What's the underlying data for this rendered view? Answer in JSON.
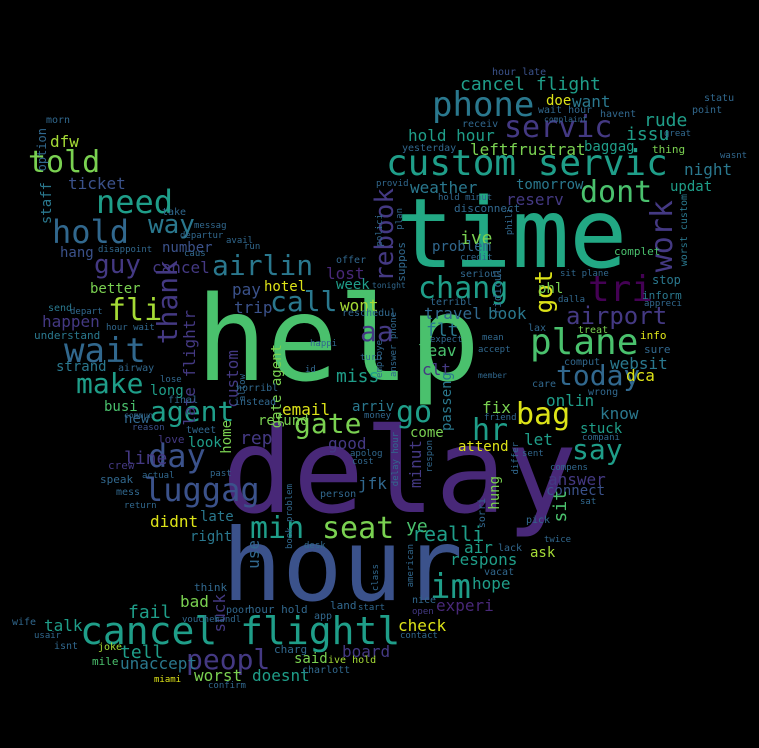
{
  "palette": {
    "yellow": "#dde318",
    "lime": "#a5db36",
    "green": "#7ad151",
    "seagreen": "#4ac16d",
    "teal": "#22a884",
    "tealblue": "#1f9e89",
    "cyan": "#2a788e",
    "slate": "#31688e",
    "blue": "#3b528b",
    "indigo": "#443983",
    "purple": "#482878",
    "deep": "#440154"
  },
  "words": [
    {
      "text": "help",
      "color": "seagreen"
    },
    {
      "text": "delay",
      "color": "purple"
    },
    {
      "text": "hour",
      "color": "blue"
    },
    {
      "text": "time",
      "color": "teal"
    },
    {
      "text": "cancel flightl",
      "color": "tealblue"
    },
    {
      "text": "custom servic",
      "color": "tealblue"
    },
    {
      "text": "phone",
      "color": "cyan"
    },
    {
      "text": "servic",
      "color": "indigo"
    },
    {
      "text": "plane",
      "color": "seagreen"
    },
    {
      "text": "wait",
      "color": "slate"
    },
    {
      "text": "need",
      "color": "tealblue"
    },
    {
      "text": "hold",
      "color": "slate"
    },
    {
      "text": "told",
      "color": "green"
    },
    {
      "text": "thank",
      "color": "indigo"
    },
    {
      "text": "agent",
      "color": "tealblue"
    },
    {
      "text": "luggag",
      "color": "blue"
    },
    {
      "text": "day",
      "color": "blue"
    },
    {
      "text": "make",
      "color": "tealblue"
    },
    {
      "text": "airlin",
      "color": "cyan"
    },
    {
      "text": "guy",
      "color": "indigo"
    },
    {
      "text": "fli",
      "color": "lime"
    },
    {
      "text": "way",
      "color": "cyan"
    },
    {
      "text": "call",
      "color": "cyan"
    },
    {
      "text": "gate",
      "color": "green"
    },
    {
      "text": "seat",
      "color": "green"
    },
    {
      "text": "min",
      "color": "tealblue"
    },
    {
      "text": "im",
      "color": "tealblue"
    },
    {
      "text": "bag",
      "color": "yellow"
    },
    {
      "text": "say",
      "color": "tealblue"
    },
    {
      "text": "today",
      "color": "slate"
    },
    {
      "text": "airport",
      "color": "indigo"
    },
    {
      "text": "tri",
      "color": "deep"
    },
    {
      "text": "work",
      "color": "indigo"
    },
    {
      "text": "dont",
      "color": "seagreen"
    },
    {
      "text": "chang",
      "color": "tealblue"
    },
    {
      "text": "rebook",
      "color": "indigo"
    },
    {
      "text": "hr",
      "color": "tealblue"
    },
    {
      "text": "go",
      "color": "tealblue"
    },
    {
      "text": "aa",
      "color": "indigo"
    },
    {
      "text": "got",
      "color": "yellow"
    },
    {
      "text": "ive",
      "color": "green"
    },
    {
      "text": "peopl",
      "color": "indigo"
    },
    {
      "text": "cancel flight",
      "color": "tealblue"
    },
    {
      "text": "hold hour",
      "color": "tealblue"
    },
    {
      "text": "leftfrustrat",
      "color": "green"
    },
    {
      "text": "weather",
      "color": "cyan"
    },
    {
      "text": "tomorrow",
      "color": "cyan"
    },
    {
      "text": "reserv",
      "color": "indigo"
    },
    {
      "text": "issu",
      "color": "tealblue"
    },
    {
      "text": "rude",
      "color": "tealblue"
    },
    {
      "text": "night",
      "color": "cyan"
    },
    {
      "text": "updat",
      "color": "tealblue"
    },
    {
      "text": "baggag",
      "color": "tealblue"
    },
    {
      "text": "want",
      "color": "cyan"
    },
    {
      "text": "doe",
      "color": "yellow"
    },
    {
      "text": "dfw",
      "color": "lime"
    },
    {
      "text": "ticket",
      "color": "blue"
    },
    {
      "text": "hang",
      "color": "blue"
    },
    {
      "text": "number",
      "color": "blue"
    },
    {
      "text": "cancel",
      "color": "indigo"
    },
    {
      "text": "lost",
      "color": "purple"
    },
    {
      "text": "pay",
      "color": "blue"
    },
    {
      "text": "trip",
      "color": "blue"
    },
    {
      "text": "wont",
      "color": "lime"
    },
    {
      "text": "week",
      "color": "tealblue"
    },
    {
      "text": "happen",
      "color": "indigo"
    },
    {
      "text": "better",
      "color": "green"
    },
    {
      "text": "busi",
      "color": "seagreen"
    },
    {
      "text": "long",
      "color": "tealblue"
    },
    {
      "text": "new",
      "color": "slate"
    },
    {
      "text": "custom",
      "color": "indigo"
    },
    {
      "text": "late flightr",
      "color": "indigo"
    },
    {
      "text": "gate agent",
      "color": "green"
    },
    {
      "text": "email",
      "color": "yellow"
    },
    {
      "text": "refund",
      "color": "green"
    },
    {
      "text": "miss",
      "color": "tealblue"
    },
    {
      "text": "arriv",
      "color": "cyan"
    },
    {
      "text": "flt",
      "color": "cyan"
    },
    {
      "text": "leav",
      "color": "seagreen"
    },
    {
      "text": "travel",
      "color": "slate"
    },
    {
      "text": "book",
      "color": "cyan"
    },
    {
      "text": "problem",
      "color": "slate"
    },
    {
      "text": "clt",
      "color": "indigo"
    },
    {
      "text": "onlin",
      "color": "tealblue"
    },
    {
      "text": "know",
      "color": "cyan"
    },
    {
      "text": "dca",
      "color": "yellow"
    },
    {
      "text": "stuck",
      "color": "tealblue"
    },
    {
      "text": "websit",
      "color": "cyan"
    },
    {
      "text": "fix",
      "color": "green"
    },
    {
      "text": "let",
      "color": "tealblue"
    },
    {
      "text": "attend",
      "color": "yellow"
    },
    {
      "text": "answer",
      "color": "indigo"
    },
    {
      "text": "connect",
      "color": "blue"
    },
    {
      "text": "sit",
      "color": "seagreen"
    },
    {
      "text": "look",
      "color": "tealblue"
    },
    {
      "text": "rep",
      "color": "indigo"
    },
    {
      "text": "home",
      "color": "green"
    },
    {
      "text": "line",
      "color": "indigo"
    },
    {
      "text": "tell",
      "color": "tealblue"
    },
    {
      "text": "good",
      "color": "indigo"
    },
    {
      "text": "come",
      "color": "green"
    },
    {
      "text": "minut",
      "color": "indigo"
    },
    {
      "text": "passeng",
      "color": "cyan"
    },
    {
      "text": "jfk",
      "color": "slate"
    },
    {
      "text": "ye",
      "color": "seagreen"
    },
    {
      "text": "realli",
      "color": "tealblue"
    },
    {
      "text": "hung",
      "color": "green"
    },
    {
      "text": "respons",
      "color": "tealblue"
    },
    {
      "text": "air",
      "color": "tealblue"
    },
    {
      "text": "ask",
      "color": "lime"
    },
    {
      "text": "hope",
      "color": "tealblue"
    },
    {
      "text": "experi",
      "color": "purple"
    },
    {
      "text": "didnt",
      "color": "yellow"
    },
    {
      "text": "late",
      "color": "cyan"
    },
    {
      "text": "right",
      "color": "cyan"
    },
    {
      "text": "use",
      "color": "slate"
    },
    {
      "text": "fail",
      "color": "tealblue"
    },
    {
      "text": "talk",
      "color": "tealblue"
    },
    {
      "text": "bad",
      "color": "green"
    },
    {
      "text": "suck",
      "color": "indigo"
    },
    {
      "text": "unaccept",
      "color": "cyan"
    },
    {
      "text": "worst",
      "color": "green"
    },
    {
      "text": "doesnt",
      "color": "tealblue"
    },
    {
      "text": "said",
      "color": "green"
    },
    {
      "text": "board",
      "color": "indigo"
    },
    {
      "text": "check",
      "color": "yellow"
    },
    {
      "text": "hotel",
      "color": "yellow"
    },
    {
      "text": "staff",
      "color": "cyan"
    },
    {
      "text": "option",
      "color": "slate"
    },
    {
      "text": "morn",
      "color": "slate"
    },
    {
      "text": "strand",
      "color": "cyan"
    },
    {
      "text": "understand",
      "color": "cyan"
    },
    {
      "text": "send",
      "color": "cyan"
    },
    {
      "text": "airway",
      "color": "slate"
    },
    {
      "text": "crew",
      "color": "indigo"
    },
    {
      "text": "speak",
      "color": "slate"
    },
    {
      "text": "mess",
      "color": "slate"
    },
    {
      "text": "final",
      "color": "slate"
    },
    {
      "text": "reason",
      "color": "blue"
    },
    {
      "text": "love",
      "color": "indigo"
    },
    {
      "text": "tweet",
      "color": "slate"
    },
    {
      "text": "instead",
      "color": "slate"
    },
    {
      "text": "wife",
      "color": "slate"
    },
    {
      "text": "usair",
      "color": "slate"
    },
    {
      "text": "isnt",
      "color": "slate"
    },
    {
      "text": "mile",
      "color": "seagreen"
    },
    {
      "text": "joke",
      "color": "lime"
    },
    {
      "text": "miami",
      "color": "yellow"
    },
    {
      "text": "think",
      "color": "slate"
    },
    {
      "text": "poor",
      "color": "slate"
    },
    {
      "text": "hour hold",
      "color": "slate"
    },
    {
      "text": "charg",
      "color": "slate"
    },
    {
      "text": "charlott",
      "color": "slate"
    },
    {
      "text": "ive hold",
      "color": "lime"
    },
    {
      "text": "land",
      "color": "slate"
    },
    {
      "text": "app",
      "color": "slate"
    },
    {
      "text": "confirm",
      "color": "slate"
    },
    {
      "text": "compens",
      "color": "slate"
    },
    {
      "text": "care",
      "color": "slate"
    },
    {
      "text": "compani",
      "color": "slate"
    },
    {
      "text": "treat",
      "color": "green"
    },
    {
      "text": "comput",
      "color": "slate"
    },
    {
      "text": "info",
      "color": "yellow"
    },
    {
      "text": "sure",
      "color": "slate"
    },
    {
      "text": "inform",
      "color": "cyan"
    },
    {
      "text": "stop",
      "color": "cyan"
    },
    {
      "text": "complet",
      "color": "seagreen"
    },
    {
      "text": "worst custom",
      "color": "cyan"
    },
    {
      "text": "statu",
      "color": "slate"
    },
    {
      "text": "point",
      "color": "slate"
    },
    {
      "text": "wasnt",
      "color": "slate"
    },
    {
      "text": "thing",
      "color": "green"
    },
    {
      "text": "great",
      "color": "slate"
    },
    {
      "text": "havent",
      "color": "slate"
    },
    {
      "text": "wait hour",
      "color": "slate"
    },
    {
      "text": "hour late",
      "color": "blue"
    },
    {
      "text": "yesterday",
      "color": "slate"
    },
    {
      "text": "disconnect",
      "color": "slate"
    },
    {
      "text": "hold minut",
      "color": "slate"
    },
    {
      "text": "receiv",
      "color": "slate"
    },
    {
      "text": "provid",
      "color": "slate"
    },
    {
      "text": "take",
      "color": "slate"
    },
    {
      "text": "messag",
      "color": "slate"
    },
    {
      "text": "run",
      "color": "slate"
    },
    {
      "text": "avail",
      "color": "slate"
    },
    {
      "text": "offer",
      "color": "slate"
    },
    {
      "text": "reschedul",
      "color": "slate"
    },
    {
      "text": "serious",
      "color": "slate"
    },
    {
      "text": "terribl",
      "color": "slate"
    },
    {
      "text": "expect",
      "color": "slate"
    },
    {
      "text": "accept",
      "color": "slate"
    },
    {
      "text": "happi",
      "color": "slate"
    },
    {
      "text": "id",
      "color": "slate"
    },
    {
      "text": "employe",
      "color": "slate"
    },
    {
      "text": "horribl",
      "color": "slate"
    },
    {
      "text": "money",
      "color": "slate"
    },
    {
      "text": "apolog",
      "color": "slate"
    },
    {
      "text": "cost",
      "color": "slate"
    },
    {
      "text": "person",
      "color": "slate"
    },
    {
      "text": "book problem",
      "color": "slate"
    },
    {
      "text": "sorri",
      "color": "slate"
    },
    {
      "text": "lack",
      "color": "slate"
    },
    {
      "text": "pick",
      "color": "slate"
    },
    {
      "text": "vacat",
      "color": "slate"
    },
    {
      "text": "nice",
      "color": "slate"
    },
    {
      "text": "open",
      "color": "indigo"
    },
    {
      "text": "contact",
      "color": "slate"
    },
    {
      "text": "start",
      "color": "slate"
    },
    {
      "text": "desk",
      "color": "slate"
    },
    {
      "text": "past",
      "color": "slate"
    },
    {
      "text": "actual",
      "color": "slate"
    },
    {
      "text": "return",
      "color": "slate"
    },
    {
      "text": "voucher",
      "color": "slate"
    },
    {
      "text": "handl",
      "color": "slate"
    },
    {
      "text": "sent",
      "color": "slate"
    },
    {
      "text": "twice",
      "color": "slate"
    },
    {
      "text": "sat",
      "color": "slate"
    },
    {
      "text": "lax",
      "color": "slate"
    },
    {
      "text": "dalla",
      "color": "slate"
    },
    {
      "text": "phl",
      "color": "green"
    },
    {
      "text": "plan",
      "color": "slate"
    },
    {
      "text": "credit",
      "color": "slate"
    },
    {
      "text": "wrong",
      "color": "slate"
    },
    {
      "text": "member",
      "color": "slate"
    },
    {
      "text": "sit plane",
      "color": "slate"
    },
    {
      "text": "appreci",
      "color": "slate"
    },
    {
      "text": "friend",
      "color": "slate"
    },
    {
      "text": "allow",
      "color": "slate"
    },
    {
      "text": "hour wait",
      "color": "slate"
    },
    {
      "text": "depart",
      "color": "slate"
    },
    {
      "text": "lose",
      "color": "slate"
    },
    {
      "text": "commun",
      "color": "slate"
    },
    {
      "text": "suppos",
      "color": "slate"
    },
    {
      "text": "polici",
      "color": "slate"
    },
    {
      "text": "american",
      "color": "slate"
    },
    {
      "text": "answer phone",
      "color": "slate"
    },
    {
      "text": "ridicul",
      "color": "slate"
    },
    {
      "text": "phili",
      "color": "slate"
    },
    {
      "text": "differ",
      "color": "slate"
    },
    {
      "text": "delay hour",
      "color": "slate"
    },
    {
      "text": "respon",
      "color": "slate"
    },
    {
      "text": "class",
      "color": "slate"
    },
    {
      "text": "mean",
      "color": "slate"
    },
    {
      "text": "turn",
      "color": "slate"
    },
    {
      "text": "complaint",
      "color": "slate"
    },
    {
      "text": "tonight",
      "color": "slate"
    },
    {
      "text": "caus",
      "color": "slate"
    },
    {
      "text": "disappoint",
      "color": "slate"
    },
    {
      "text": "departur",
      "color": "slate"
    }
  ]
}
